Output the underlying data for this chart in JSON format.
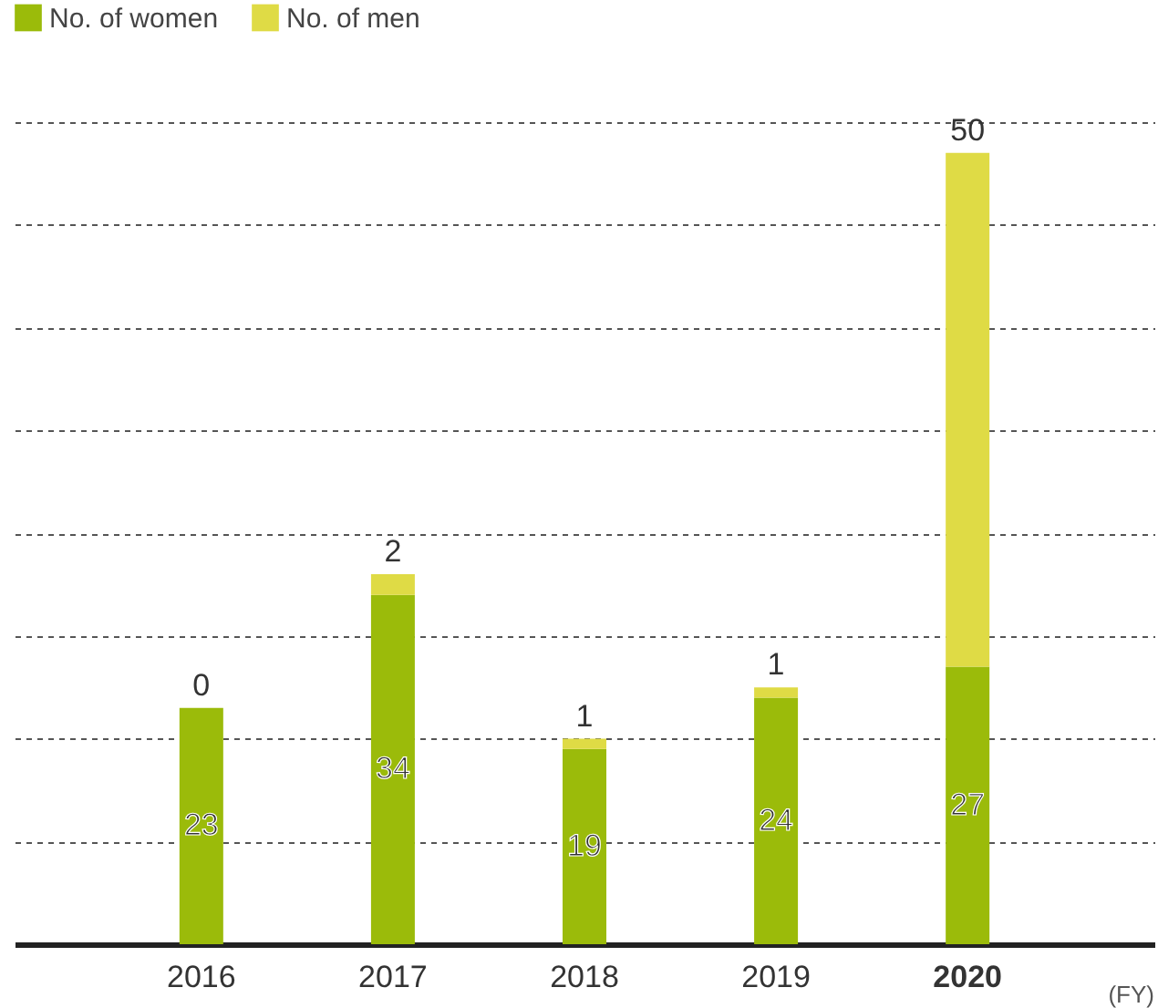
{
  "chart_data": {
    "type": "bar",
    "stacked": true,
    "categories": [
      "2016",
      "2017",
      "2018",
      "2019",
      "2020"
    ],
    "series": [
      {
        "name": "No. of women",
        "color": "#9bbb0a",
        "values": [
          23,
          34,
          19,
          24,
          27
        ]
      },
      {
        "name": "No. of men",
        "color": "#dfdb45",
        "values": [
          0,
          2,
          1,
          1,
          50
        ]
      }
    ],
    "ylim": [
      0,
      80
    ],
    "yticks": [
      {
        "value": 0,
        "label": null
      },
      {
        "value": 10,
        "label": null
      },
      {
        "value": 20,
        "label": null
      },
      {
        "value": 30,
        "label": null
      },
      {
        "value": 40,
        "label": null
      },
      {
        "value": 50,
        "label": null
      },
      {
        "value": 60,
        "label": null
      },
      {
        "value": 70,
        "label": null
      },
      {
        "value": 80,
        "label": null
      }
    ],
    "grid": "y",
    "tick_labels": "x",
    "legend": "top left",
    "data_labels": true,
    "annotations": [
      "(FY)"
    ]
  }
}
